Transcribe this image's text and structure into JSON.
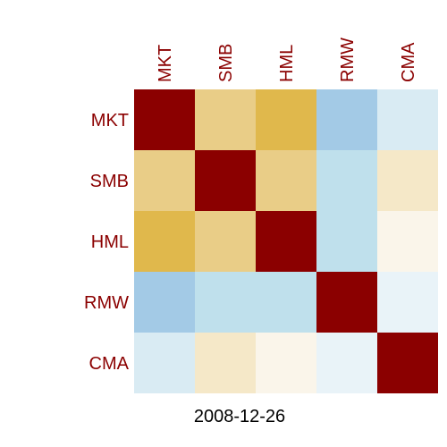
{
  "chart_data": {
    "type": "heatmap",
    "labels": [
      "MKT",
      "SMB",
      "HML",
      "RMW",
      "CMA"
    ],
    "matrix": [
      [
        1.0,
        0.3,
        0.45,
        -0.35,
        -0.1
      ],
      [
        0.3,
        1.0,
        0.25,
        -0.2,
        0.12
      ],
      [
        0.45,
        0.25,
        1.0,
        -0.22,
        0.05
      ],
      [
        -0.35,
        -0.2,
        -0.22,
        1.0,
        -0.06
      ],
      [
        -0.1,
        0.12,
        0.05,
        -0.06,
        1.0
      ]
    ],
    "caption": "2008-12-26",
    "colors": {
      "label": "#8b0000",
      "diagonal": "#8b0000",
      "high_positive": "#e0b84c",
      "mid_positive": "#e9cd87",
      "low_positive": "#f5e8c8",
      "near_zero": "#faf5ea",
      "near_zero_negative": "#e9f3f8",
      "low_negative": "#d9ebf3",
      "mid_negative": "#bfe0ec",
      "high_negative": "#a3cae6"
    }
  }
}
